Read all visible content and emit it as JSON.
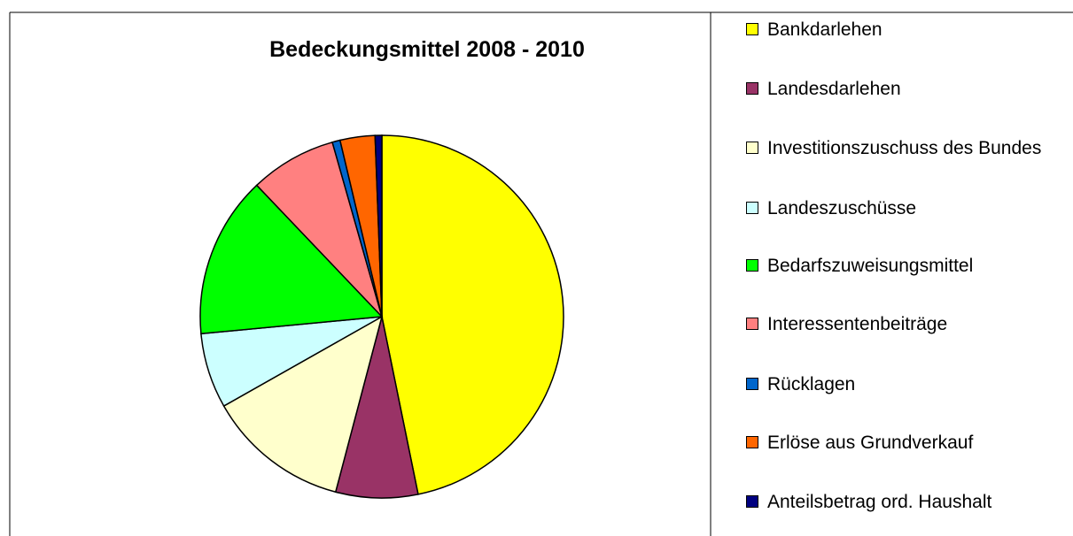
{
  "chart_data": {
    "type": "pie",
    "title": "Bedeckungsmittel 2008 - 2010",
    "categories": [
      "Bankdarlehen",
      "Landesdarlehen",
      "Investitionszuschuss des Bundes",
      "Landeszuschüsse",
      "Bedarfszuweisungsmittel",
      "Interessentenbeiträge",
      "Rücklagen",
      "Erlöse aus Grundverkauf",
      "Anteilsbetrag ord. Haushalt"
    ],
    "values": [
      46.8,
      7.3,
      12.7,
      6.7,
      14.4,
      7.7,
      0.7,
      3.1,
      0.6
    ],
    "colors": [
      "#ffff00",
      "#993366",
      "#ffffcc",
      "#ccffff",
      "#00ff00",
      "#ff8080",
      "#0066cc",
      "#ff6600",
      "#000080"
    ],
    "legend": "right"
  }
}
